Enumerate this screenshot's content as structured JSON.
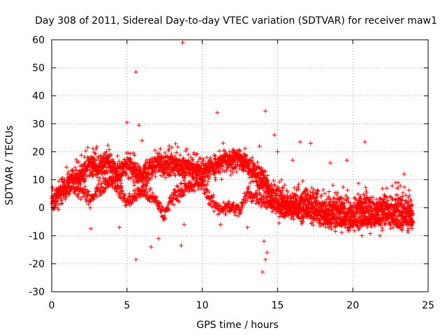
{
  "chart_data": {
    "type": "scatter",
    "title": "Day 308 of 2011, Sidereal Day-to-day VTEC variation (SDTVAR) for receiver maw1",
    "xlabel": "GPS time / hours",
    "ylabel": "SDTVAR / TECUs",
    "xlim": [
      0,
      25
    ],
    "ylim": [
      -30,
      60
    ],
    "xticks": [
      0,
      5,
      10,
      15,
      20,
      25
    ],
    "yticks": [
      -30,
      -20,
      -10,
      0,
      10,
      20,
      30,
      40,
      50,
      60
    ],
    "grid": true,
    "marker": "+",
    "series_color": "#ff0000",
    "trend_anchors": [
      {
        "x": 0.0,
        "y": 3
      },
      {
        "x": 0.5,
        "y": 5
      },
      {
        "x": 1.0,
        "y": 8
      },
      {
        "x": 1.5,
        "y": 10
      },
      {
        "x": 2.0,
        "y": 12
      },
      {
        "x": 2.5,
        "y": 16
      },
      {
        "x": 3.0,
        "y": 14
      },
      {
        "x": 3.5,
        "y": 16
      },
      {
        "x": 4.0,
        "y": 15
      },
      {
        "x": 4.5,
        "y": 12
      },
      {
        "x": 5.0,
        "y": 16
      },
      {
        "x": 5.5,
        "y": 13
      },
      {
        "x": 6.0,
        "y": 10
      },
      {
        "x": 6.5,
        "y": 14
      },
      {
        "x": 7.0,
        "y": 16
      },
      {
        "x": 7.5,
        "y": 15
      },
      {
        "x": 8.0,
        "y": 16
      },
      {
        "x": 8.5,
        "y": 15
      },
      {
        "x": 9.0,
        "y": 14
      },
      {
        "x": 9.5,
        "y": 14
      },
      {
        "x": 10.0,
        "y": 13
      },
      {
        "x": 10.5,
        "y": 14
      },
      {
        "x": 11.0,
        "y": 15
      },
      {
        "x": 11.5,
        "y": 17
      },
      {
        "x": 12.0,
        "y": 17
      },
      {
        "x": 12.5,
        "y": 18
      },
      {
        "x": 13.0,
        "y": 15
      },
      {
        "x": 13.5,
        "y": 12
      },
      {
        "x": 14.0,
        "y": 10
      },
      {
        "x": 14.5,
        "y": 6
      },
      {
        "x": 15.0,
        "y": 3
      },
      {
        "x": 15.5,
        "y": 2
      },
      {
        "x": 16.0,
        "y": 1
      },
      {
        "x": 16.5,
        "y": 1
      },
      {
        "x": 17.0,
        "y": 2
      },
      {
        "x": 17.5,
        "y": 1
      },
      {
        "x": 18.0,
        "y": 0
      },
      {
        "x": 18.5,
        "y": -1
      },
      {
        "x": 19.0,
        "y": 0
      },
      {
        "x": 19.5,
        "y": -1
      },
      {
        "x": 20.0,
        "y": -2
      },
      {
        "x": 20.5,
        "y": 1
      },
      {
        "x": 21.0,
        "y": 0
      },
      {
        "x": 21.5,
        "y": -2
      },
      {
        "x": 22.0,
        "y": 1
      },
      {
        "x": 22.5,
        "y": -1
      },
      {
        "x": 23.0,
        "y": 0
      },
      {
        "x": 23.5,
        "y": -1
      },
      {
        "x": 24.0,
        "y": -3
      }
    ],
    "lower_branch_anchors": [
      {
        "x": 1.5,
        "y": 6
      },
      {
        "x": 2.0,
        "y": 6
      },
      {
        "x": 2.5,
        "y": 3
      },
      {
        "x": 3.0,
        "y": 6
      },
      {
        "x": 4.0,
        "y": 10
      },
      {
        "x": 5.0,
        "y": 2
      },
      {
        "x": 6.0,
        "y": 6
      },
      {
        "x": 7.0,
        "y": 2
      },
      {
        "x": 7.5,
        "y": -3
      },
      {
        "x": 8.0,
        "y": 4
      },
      {
        "x": 9.0,
        "y": 7
      },
      {
        "x": 10.0,
        "y": 9
      },
      {
        "x": 10.5,
        "y": 3
      },
      {
        "x": 11.0,
        "y": 0
      },
      {
        "x": 11.5,
        "y": 0
      },
      {
        "x": 12.0,
        "y": 0
      },
      {
        "x": 12.5,
        "y": -1
      },
      {
        "x": 13.0,
        "y": 5
      },
      {
        "x": 14.0,
        "y": 3
      },
      {
        "x": 15.0,
        "y": 0
      },
      {
        "x": 16.0,
        "y": -1
      },
      {
        "x": 17.0,
        "y": -2
      },
      {
        "x": 18.0,
        "y": -4
      },
      {
        "x": 19.0,
        "y": -5
      },
      {
        "x": 20.0,
        "y": -6
      },
      {
        "x": 21.0,
        "y": -5
      },
      {
        "x": 22.0,
        "y": -4
      },
      {
        "x": 23.0,
        "y": -5
      },
      {
        "x": 24.0,
        "y": -5
      }
    ],
    "outliers": [
      {
        "x": 8.7,
        "y": 59
      },
      {
        "x": 5.6,
        "y": 48.5
      },
      {
        "x": 11.0,
        "y": 34
      },
      {
        "x": 14.2,
        "y": 34.5
      },
      {
        "x": 5.0,
        "y": 30.5
      },
      {
        "x": 5.8,
        "y": 29.5
      },
      {
        "x": 14.8,
        "y": 26
      },
      {
        "x": 16.5,
        "y": 23.5
      },
      {
        "x": 17.2,
        "y": 23
      },
      {
        "x": 20.8,
        "y": 23.5
      },
      {
        "x": 14.0,
        "y": -23
      },
      {
        "x": 14.2,
        "y": -18.5
      },
      {
        "x": 5.6,
        "y": -18.5
      },
      {
        "x": 14.3,
        "y": -16
      },
      {
        "x": 14.1,
        "y": -12
      },
      {
        "x": 6.6,
        "y": -14
      },
      {
        "x": 8.6,
        "y": -13.5
      },
      {
        "x": 2.6,
        "y": -7.5
      },
      {
        "x": 4.5,
        "y": -7
      },
      {
        "x": 7.1,
        "y": -11
      },
      {
        "x": 8.8,
        "y": -6
      },
      {
        "x": 11.2,
        "y": -6
      },
      {
        "x": 13.0,
        "y": -7
      },
      {
        "x": 15.1,
        "y": -5.5
      },
      {
        "x": 18.8,
        "y": -7
      },
      {
        "x": 20.6,
        "y": -10
      },
      {
        "x": 21.8,
        "y": -10
      },
      {
        "x": 2.4,
        "y": 21.5
      },
      {
        "x": 3.0,
        "y": 21.8
      },
      {
        "x": 6.0,
        "y": 24
      },
      {
        "x": 7.8,
        "y": 21
      },
      {
        "x": 10.3,
        "y": 18
      },
      {
        "x": 13.8,
        "y": 22
      },
      {
        "x": 15.0,
        "y": 20
      },
      {
        "x": 16.0,
        "y": 17
      },
      {
        "x": 18.5,
        "y": 16
      },
      {
        "x": 19.6,
        "y": 17
      },
      {
        "x": 23.4,
        "y": 12
      },
      {
        "x": 23.0,
        "y": 9
      }
    ]
  }
}
